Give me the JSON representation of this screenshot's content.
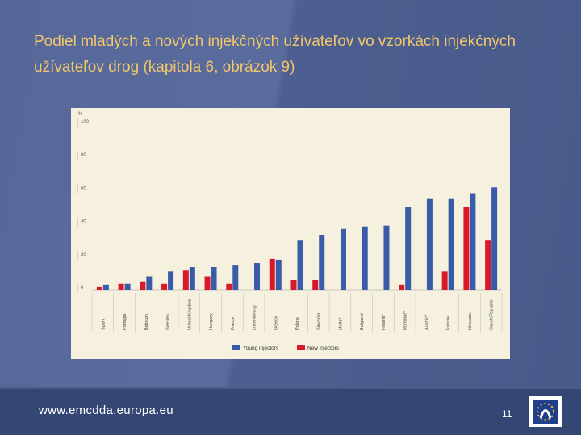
{
  "slide": {
    "title": "Podiel mladých a nových injekčných užívateľov vo vzorkách injekčných užívateľov drog (kapitola 6, obrázok 9)",
    "footer_url": "www.emcdda.europa.eu",
    "page_number": "11"
  },
  "chart_data": {
    "type": "bar",
    "ylabel": "%",
    "ylim": [
      0,
      100
    ],
    "yticks": [
      0,
      20,
      40,
      60,
      80,
      100
    ],
    "categories": [
      "Spain",
      "Portugal",
      "Belgium",
      "Sweden",
      "United Kingdom",
      "Hungary",
      "France",
      "Luxembourg*",
      "Greece",
      "Poland",
      "Slovenia",
      "Malta*",
      "Bulgaria*",
      "Finland*",
      "Romania*",
      "Austria*",
      "Estonia",
      "Lithuania",
      "Czech Republic"
    ],
    "series": [
      {
        "name": "Young injectors",
        "color": "#3a5ba8",
        "values": [
          3,
          4,
          8,
          11,
          14,
          14,
          15,
          16,
          18,
          30,
          33,
          37,
          38,
          39,
          50,
          55,
          55,
          58,
          62
        ]
      },
      {
        "name": "New injectors",
        "color": "#d8192c",
        "values": [
          2,
          4,
          5,
          4,
          12,
          8,
          4,
          null,
          19,
          6,
          6,
          null,
          null,
          null,
          3,
          null,
          11,
          50,
          30
        ]
      }
    ],
    "legend_position": "bottom",
    "grid": false
  }
}
